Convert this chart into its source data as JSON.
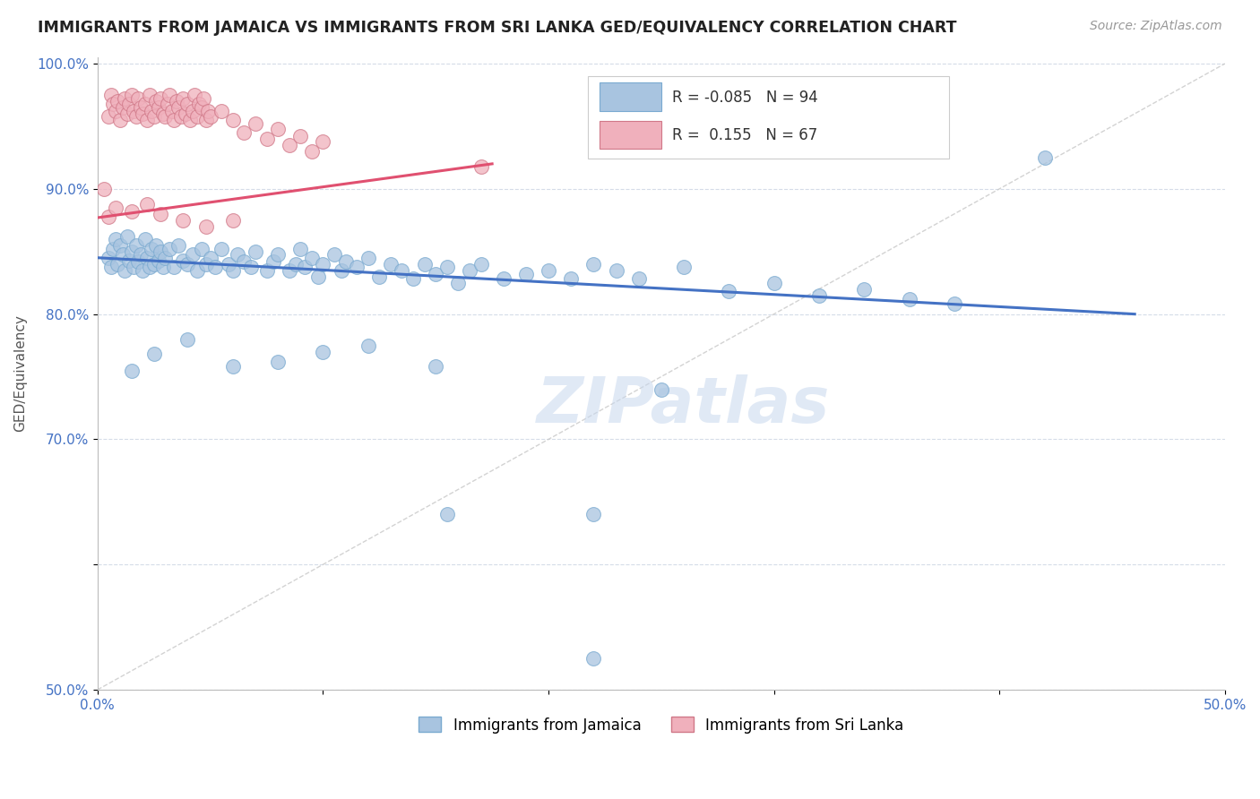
{
  "title": "IMMIGRANTS FROM JAMAICA VS IMMIGRANTS FROM SRI LANKA GED/EQUIVALENCY CORRELATION CHART",
  "source": "Source: ZipAtlas.com",
  "ylabel": "GED/Equivalency",
  "xlim": [
    0.0,
    0.5
  ],
  "ylim": [
    0.5,
    1.005
  ],
  "y_ticks": [
    0.5,
    0.6,
    0.7,
    0.8,
    0.9,
    1.0
  ],
  "y_tick_labels": [
    "50.0%",
    "",
    "70.0%",
    "80.0%",
    "90.0%",
    "100.0%"
  ],
  "x_ticks": [
    0.0,
    0.1,
    0.2,
    0.3,
    0.4,
    0.5
  ],
  "x_tick_labels": [
    "0.0%",
    "",
    "",
    "",
    "",
    "50.0%"
  ],
  "jamaica_color": "#a8c4e0",
  "jamaica_edge": "#7aaad0",
  "srilanka_color": "#f0b0bc",
  "srilanka_edge": "#d07888",
  "r_jamaica": -0.085,
  "n_jamaica": 94,
  "r_srilanka": 0.155,
  "n_srilanka": 67,
  "trend_jamaica_color": "#4472c4",
  "trend_srilanka_color": "#e05070",
  "diagonal_color": "#c8c8c8",
  "watermark": "ZIPatlas",
  "legend_label_jamaica": "Immigrants from Jamaica",
  "legend_label_srilanka": "Immigrants from Sri Lanka",
  "trend_jamaica_x0": 0.0,
  "trend_jamaica_y0": 0.845,
  "trend_jamaica_x1": 0.46,
  "trend_jamaica_y1": 0.8,
  "trend_srilanka_x0": 0.0,
  "trend_srilanka_y0": 0.877,
  "trend_srilanka_x1": 0.175,
  "trend_srilanka_y1": 0.92,
  "jamaica_points": [
    [
      0.005,
      0.845
    ],
    [
      0.006,
      0.838
    ],
    [
      0.007,
      0.852
    ],
    [
      0.008,
      0.86
    ],
    [
      0.009,
      0.84
    ],
    [
      0.01,
      0.855
    ],
    [
      0.011,
      0.848
    ],
    [
      0.012,
      0.835
    ],
    [
      0.013,
      0.862
    ],
    [
      0.014,
      0.843
    ],
    [
      0.015,
      0.85
    ],
    [
      0.016,
      0.838
    ],
    [
      0.017,
      0.855
    ],
    [
      0.018,
      0.842
    ],
    [
      0.019,
      0.848
    ],
    [
      0.02,
      0.835
    ],
    [
      0.021,
      0.86
    ],
    [
      0.022,
      0.845
    ],
    [
      0.023,
      0.838
    ],
    [
      0.024,
      0.852
    ],
    [
      0.025,
      0.84
    ],
    [
      0.026,
      0.855
    ],
    [
      0.027,
      0.843
    ],
    [
      0.028,
      0.85
    ],
    [
      0.029,
      0.838
    ],
    [
      0.03,
      0.845
    ],
    [
      0.032,
      0.852
    ],
    [
      0.034,
      0.838
    ],
    [
      0.036,
      0.855
    ],
    [
      0.038,
      0.843
    ],
    [
      0.04,
      0.84
    ],
    [
      0.042,
      0.848
    ],
    [
      0.044,
      0.835
    ],
    [
      0.046,
      0.852
    ],
    [
      0.048,
      0.84
    ],
    [
      0.05,
      0.845
    ],
    [
      0.052,
      0.838
    ],
    [
      0.055,
      0.852
    ],
    [
      0.058,
      0.84
    ],
    [
      0.06,
      0.835
    ],
    [
      0.062,
      0.848
    ],
    [
      0.065,
      0.842
    ],
    [
      0.068,
      0.838
    ],
    [
      0.07,
      0.85
    ],
    [
      0.075,
      0.835
    ],
    [
      0.078,
      0.842
    ],
    [
      0.08,
      0.848
    ],
    [
      0.085,
      0.835
    ],
    [
      0.088,
      0.84
    ],
    [
      0.09,
      0.852
    ],
    [
      0.092,
      0.838
    ],
    [
      0.095,
      0.845
    ],
    [
      0.098,
      0.83
    ],
    [
      0.1,
      0.84
    ],
    [
      0.105,
      0.848
    ],
    [
      0.108,
      0.835
    ],
    [
      0.11,
      0.842
    ],
    [
      0.115,
      0.838
    ],
    [
      0.12,
      0.845
    ],
    [
      0.125,
      0.83
    ],
    [
      0.13,
      0.84
    ],
    [
      0.135,
      0.835
    ],
    [
      0.14,
      0.828
    ],
    [
      0.145,
      0.84
    ],
    [
      0.15,
      0.832
    ],
    [
      0.155,
      0.838
    ],
    [
      0.16,
      0.825
    ],
    [
      0.165,
      0.835
    ],
    [
      0.17,
      0.84
    ],
    [
      0.18,
      0.828
    ],
    [
      0.19,
      0.832
    ],
    [
      0.2,
      0.835
    ],
    [
      0.21,
      0.828
    ],
    [
      0.22,
      0.84
    ],
    [
      0.23,
      0.835
    ],
    [
      0.24,
      0.828
    ],
    [
      0.26,
      0.838
    ],
    [
      0.28,
      0.818
    ],
    [
      0.3,
      0.825
    ],
    [
      0.32,
      0.815
    ],
    [
      0.34,
      0.82
    ],
    [
      0.36,
      0.812
    ],
    [
      0.38,
      0.808
    ],
    [
      0.015,
      0.755
    ],
    [
      0.025,
      0.768
    ],
    [
      0.04,
      0.78
    ],
    [
      0.06,
      0.758
    ],
    [
      0.08,
      0.762
    ],
    [
      0.1,
      0.77
    ],
    [
      0.12,
      0.775
    ],
    [
      0.15,
      0.758
    ],
    [
      0.25,
      0.74
    ],
    [
      0.22,
      0.64
    ],
    [
      0.22,
      0.525
    ],
    [
      0.155,
      0.64
    ],
    [
      0.42,
      0.925
    ]
  ],
  "srilanka_points": [
    [
      0.003,
      0.9
    ],
    [
      0.005,
      0.958
    ],
    [
      0.006,
      0.975
    ],
    [
      0.007,
      0.968
    ],
    [
      0.008,
      0.962
    ],
    [
      0.009,
      0.97
    ],
    [
      0.01,
      0.955
    ],
    [
      0.011,
      0.965
    ],
    [
      0.012,
      0.972
    ],
    [
      0.013,
      0.96
    ],
    [
      0.014,
      0.968
    ],
    [
      0.015,
      0.975
    ],
    [
      0.016,
      0.962
    ],
    [
      0.017,
      0.958
    ],
    [
      0.018,
      0.972
    ],
    [
      0.019,
      0.965
    ],
    [
      0.02,
      0.96
    ],
    [
      0.021,
      0.968
    ],
    [
      0.022,
      0.955
    ],
    [
      0.023,
      0.975
    ],
    [
      0.024,
      0.962
    ],
    [
      0.025,
      0.958
    ],
    [
      0.026,
      0.97
    ],
    [
      0.027,
      0.965
    ],
    [
      0.028,
      0.972
    ],
    [
      0.029,
      0.96
    ],
    [
      0.03,
      0.958
    ],
    [
      0.031,
      0.968
    ],
    [
      0.032,
      0.975
    ],
    [
      0.033,
      0.962
    ],
    [
      0.034,
      0.955
    ],
    [
      0.035,
      0.97
    ],
    [
      0.036,
      0.965
    ],
    [
      0.037,
      0.958
    ],
    [
      0.038,
      0.972
    ],
    [
      0.039,
      0.96
    ],
    [
      0.04,
      0.968
    ],
    [
      0.041,
      0.955
    ],
    [
      0.042,
      0.962
    ],
    [
      0.043,
      0.975
    ],
    [
      0.044,
      0.958
    ],
    [
      0.045,
      0.968
    ],
    [
      0.046,
      0.965
    ],
    [
      0.047,
      0.972
    ],
    [
      0.048,
      0.955
    ],
    [
      0.049,
      0.962
    ],
    [
      0.05,
      0.958
    ],
    [
      0.055,
      0.962
    ],
    [
      0.06,
      0.955
    ],
    [
      0.065,
      0.945
    ],
    [
      0.07,
      0.952
    ],
    [
      0.075,
      0.94
    ],
    [
      0.08,
      0.948
    ],
    [
      0.085,
      0.935
    ],
    [
      0.09,
      0.942
    ],
    [
      0.095,
      0.93
    ],
    [
      0.1,
      0.938
    ],
    [
      0.005,
      0.878
    ],
    [
      0.008,
      0.885
    ],
    [
      0.015,
      0.882
    ],
    [
      0.022,
      0.888
    ],
    [
      0.028,
      0.88
    ],
    [
      0.038,
      0.875
    ],
    [
      0.048,
      0.87
    ],
    [
      0.06,
      0.875
    ],
    [
      0.17,
      0.918
    ]
  ]
}
